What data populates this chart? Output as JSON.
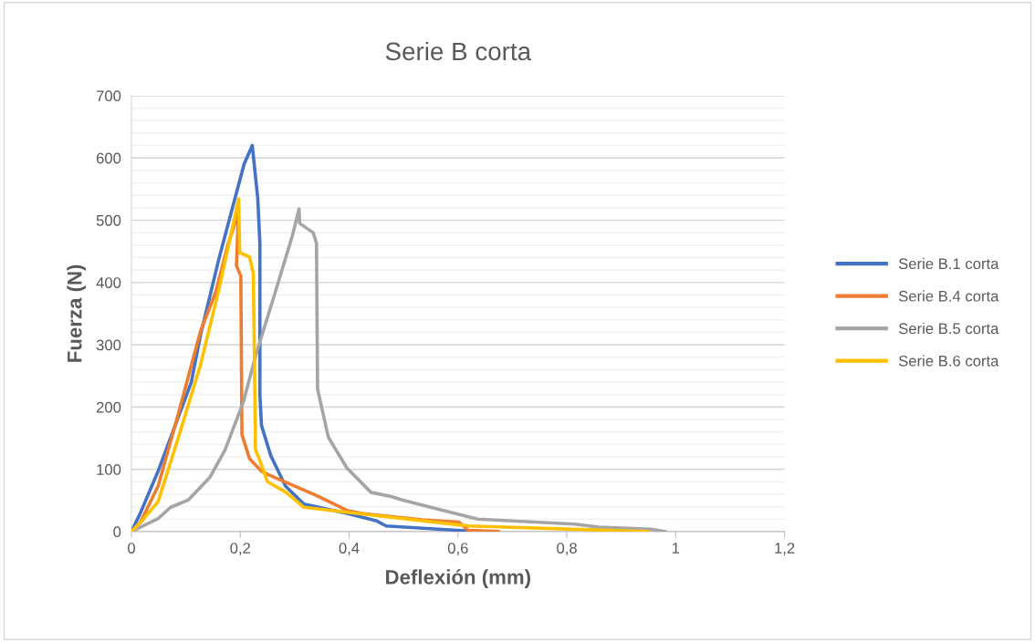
{
  "chart_data": {
    "type": "line",
    "title": "Serie B corta",
    "xlabel": "Deflexión (mm)",
    "ylabel": "Fuerza (N)",
    "xlim": [
      0,
      1.2
    ],
    "xticks": [
      0,
      {
        "value": 0.2,
        "label": "0,2"
      },
      {
        "value": 0.4,
        "label": "0,4"
      },
      {
        "value": 0.6,
        "label": "0,6"
      },
      {
        "value": 0.8,
        "label": "0,8"
      },
      1,
      {
        "value": 1.2,
        "label": "1,2"
      }
    ],
    "ylim": [
      0,
      700
    ],
    "yticks": [
      0,
      {
        "value": 20,
        "label": null
      },
      {
        "value": 40,
        "label": null
      },
      {
        "value": 60,
        "label": null
      },
      {
        "value": 80,
        "label": null
      },
      100,
      {
        "value": 120,
        "label": null
      },
      {
        "value": 140,
        "label": null
      },
      {
        "value": 160,
        "label": null
      },
      {
        "value": 180,
        "label": null
      },
      200,
      {
        "value": 220,
        "label": null
      },
      {
        "value": 240,
        "label": null
      },
      {
        "value": 260,
        "label": null
      },
      {
        "value": 280,
        "label": null
      },
      300,
      {
        "value": 320,
        "label": null
      },
      {
        "value": 340,
        "label": null
      },
      {
        "value": 360,
        "label": null
      },
      {
        "value": 380,
        "label": null
      },
      400,
      {
        "value": 420,
        "label": null
      },
      {
        "value": 440,
        "label": null
      },
      {
        "value": 460,
        "label": null
      },
      {
        "value": 480,
        "label": null
      },
      500,
      {
        "value": 520,
        "label": null
      },
      {
        "value": 540,
        "label": null
      },
      {
        "value": 560,
        "label": null
      },
      {
        "value": 580,
        "label": null
      },
      600,
      {
        "value": 620,
        "label": null
      },
      {
        "value": 640,
        "label": null
      },
      {
        "value": 660,
        "label": null
      },
      {
        "value": 680,
        "label": null
      },
      700
    ],
    "grid": "y",
    "legend": "right",
    "marker": "none",
    "line_style": "solid",
    "series": [
      {
        "name": "Serie B.1 corta",
        "color": "#4472c4",
        "x": [
          0,
          0.016,
          0.049,
          0.11,
          0.127,
          0.161,
          0.189,
          0.207,
          0.222,
          0.232,
          0.236,
          0.236,
          0.239,
          0.256,
          0.283,
          0.317,
          0.396,
          0.451,
          0.468,
          0.563,
          0.641
        ],
        "values": [
          0,
          29,
          97,
          240,
          316,
          439,
          531,
          590,
          620,
          536,
          463,
          219,
          170,
          122,
          73,
          44,
          29,
          17,
          9,
          4,
          0
        ]
      },
      {
        "name": "Serie B.4 corta",
        "color": "#ed7d31",
        "x": [
          0,
          0.016,
          0.049,
          0.088,
          0.127,
          0.155,
          0.178,
          0.194,
          0.197,
          0.193,
          0.201,
          0.203,
          0.217,
          0.239,
          0.25,
          0.34,
          0.396,
          0.423,
          0.535,
          0.602,
          0.619,
          0.675
        ],
        "values": [
          0,
          14,
          73,
          195,
          322,
          385,
          463,
          505,
          520,
          427,
          410,
          156,
          117,
          97,
          92,
          58,
          34,
          29,
          19,
          15,
          2,
          0
        ]
      },
      {
        "name": "Serie B.5 corta",
        "color": "#a5a5a5",
        "x": [
          0,
          0.049,
          0.072,
          0.105,
          0.144,
          0.172,
          0.206,
          0.228,
          0.261,
          0.295,
          0.308,
          0.309,
          0.334,
          0.34,
          0.342,
          0.362,
          0.396,
          0.44,
          0.479,
          0.496,
          0.563,
          0.636,
          0.815,
          0.859,
          0.954,
          0.982
        ],
        "values": [
          0,
          21,
          39,
          51,
          87,
          131,
          209,
          282,
          375,
          473,
          518,
          495,
          480,
          463,
          229,
          151,
          102,
          63,
          56,
          51,
          36,
          20,
          12,
          7,
          4,
          0
        ]
      },
      {
        "name": "Serie B.6 corta",
        "color": "#ffc000",
        "x": [
          0,
          0.021,
          0.049,
          0.088,
          0.127,
          0.161,
          0.183,
          0.197,
          0.199,
          0.217,
          0.224,
          0.228,
          0.233,
          0.25,
          0.284,
          0.317,
          0.396,
          0.619,
          0.949
        ],
        "values": [
          0,
          19,
          48,
          156,
          268,
          390,
          478,
          534,
          448,
          441,
          414,
          131,
          121,
          80,
          63,
          39,
          31,
          9,
          0
        ]
      }
    ]
  }
}
